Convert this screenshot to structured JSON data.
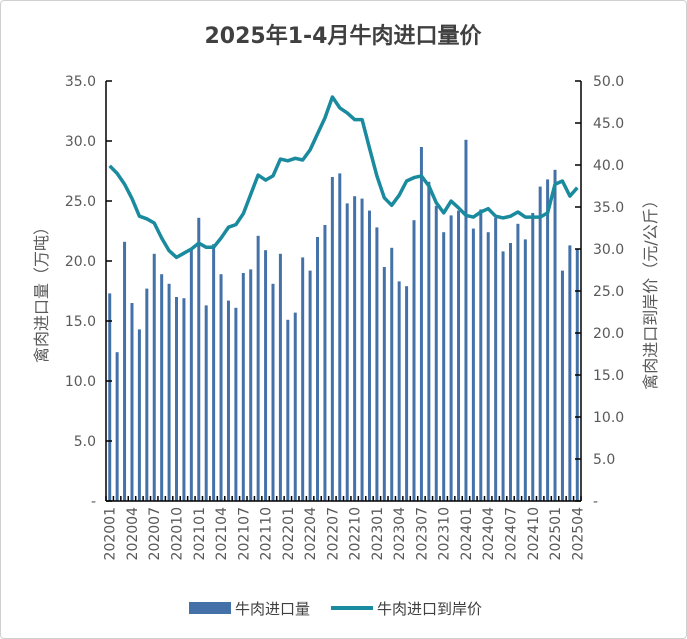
{
  "chart_data": {
    "type": "bar+line",
    "title": "2025年1-4月牛肉进口量价",
    "ylabel_left": "禽肉进口量（万吨）",
    "ylabel_right": "禽肉进口到岸价（元/公斤）",
    "ylim_left": [
      0,
      35
    ],
    "ylim_right": [
      0,
      50
    ],
    "yticks_left": [
      "-",
      "5.0",
      "10.0",
      "15.0",
      "20.0",
      "25.0",
      "30.0",
      "35.0"
    ],
    "yticks_right": [
      "-",
      "5.0",
      "10.0",
      "15.0",
      "20.0",
      "25.0",
      "30.0",
      "35.0",
      "40.0",
      "45.0",
      "50.0"
    ],
    "grid": false,
    "legend_position": "bottom",
    "colors": {
      "bar": "#4472a8",
      "line": "#1a8a9e"
    },
    "categories": [
      "202001",
      "202002",
      "202003",
      "202004",
      "202005",
      "202006",
      "202007",
      "202008",
      "202009",
      "202010",
      "202011",
      "202012",
      "202101",
      "202102",
      "202103",
      "202104",
      "202105",
      "202106",
      "202107",
      "202108",
      "202109",
      "202110",
      "202111",
      "202112",
      "202201",
      "202202",
      "202203",
      "202204",
      "202205",
      "202206",
      "202207",
      "202208",
      "202209",
      "202210",
      "202211",
      "202212",
      "202301",
      "202302",
      "202303",
      "202304",
      "202305",
      "202306",
      "202307",
      "202308",
      "202309",
      "202310",
      "202311",
      "202312",
      "202401",
      "202402",
      "202403",
      "202404",
      "202405",
      "202406",
      "202407",
      "202408",
      "202409",
      "202410",
      "202411",
      "202412",
      "202501",
      "202502",
      "202503",
      "202504"
    ],
    "xtick_labels": [
      "202001",
      "202004",
      "202007",
      "202010",
      "202101",
      "202104",
      "202107",
      "202110",
      "202201",
      "202204",
      "202207",
      "202210",
      "202301",
      "202304",
      "202307",
      "202310",
      "202401",
      "202404",
      "202407",
      "202410",
      "202501",
      "202504"
    ],
    "series": [
      {
        "name": "牛肉进口量",
        "axis": "left",
        "type": "bar",
        "values": [
          17.3,
          12.4,
          21.6,
          16.5,
          14.3,
          17.7,
          20.6,
          18.9,
          18.1,
          17.0,
          16.9,
          21.0,
          23.6,
          16.3,
          21.4,
          18.9,
          16.7,
          16.1,
          19.0,
          19.3,
          22.1,
          20.9,
          18.1,
          20.6,
          15.1,
          15.7,
          20.3,
          19.2,
          22.0,
          23.0,
          27.0,
          27.3,
          24.8,
          25.4,
          25.2,
          24.2,
          22.8,
          19.5,
          21.1,
          18.3,
          17.9,
          23.4,
          29.5,
          26.6,
          24.6,
          22.4,
          23.8,
          24.2,
          30.1,
          22.7,
          24.3,
          22.4,
          23.6,
          20.8,
          21.5,
          23.1,
          21.8,
          24.0,
          26.2,
          26.8,
          27.6,
          19.2,
          21.3,
          21.0
        ]
      },
      {
        "name": "牛肉进口到岸价",
        "axis": "right",
        "type": "line",
        "values": [
          39.9,
          39.0,
          37.7,
          36.0,
          33.9,
          33.6,
          33.1,
          31.3,
          29.8,
          29.0,
          29.5,
          30.0,
          30.7,
          30.2,
          30.2,
          31.3,
          32.6,
          32.9,
          34.2,
          36.5,
          38.8,
          38.2,
          38.7,
          40.7,
          40.5,
          40.8,
          40.6,
          41.8,
          43.7,
          45.6,
          48.1,
          46.8,
          46.2,
          45.4,
          45.4,
          42.0,
          38.7,
          36.1,
          35.2,
          36.4,
          38.1,
          38.5,
          38.7,
          37.5,
          35.5,
          34.3,
          35.7,
          34.9,
          34.0,
          33.8,
          34.4,
          34.8,
          33.9,
          33.7,
          33.9,
          34.4,
          33.8,
          33.8,
          33.8,
          34.3,
          37.7,
          38.1,
          36.3,
          37.3
        ]
      }
    ]
  }
}
